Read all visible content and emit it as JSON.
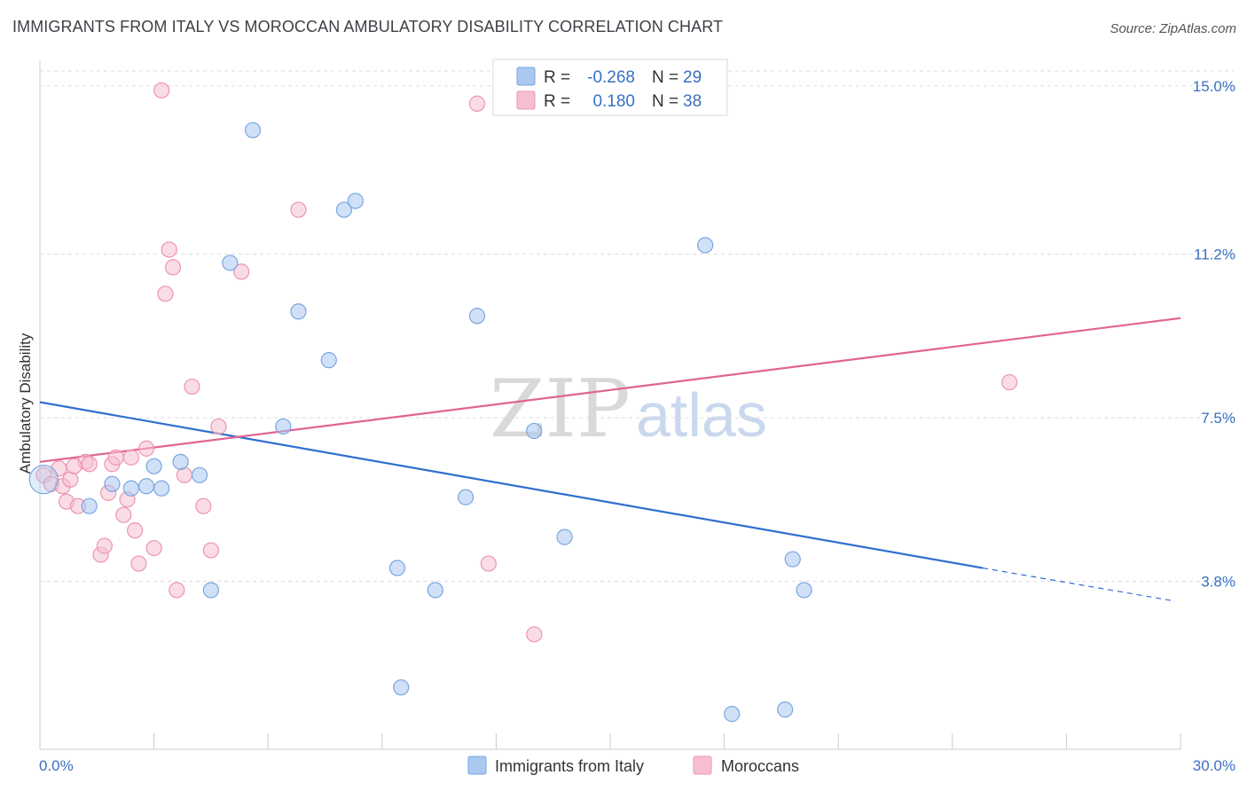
{
  "header": {
    "title": "IMMIGRANTS FROM ITALY VS MOROCCAN AMBULATORY DISABILITY CORRELATION CHART",
    "source": "Source: ZipAtlas.com"
  },
  "watermark": {
    "zip": "ZIP",
    "atlas": "atlas"
  },
  "colors": {
    "blue_fill": "#aac8f0",
    "blue_stroke": "#7aa6e0",
    "blue_line": "#2f6fd0",
    "pink_fill": "#f6bfd0",
    "pink_stroke": "#ec94b2",
    "pink_line": "#e06592",
    "grid": "#dddddd",
    "tick_text": "#3a6fc4"
  },
  "legend": {
    "rows": [
      {
        "r_label": "R =",
        "r_value": "-0.268",
        "n_label": "N =",
        "n_value": "29"
      },
      {
        "r_label": "R =",
        "r_value": "0.180",
        "n_label": "N =",
        "n_value": "38"
      }
    ]
  },
  "bottom_legend": {
    "items": [
      {
        "label": "Immigrants from Italy"
      },
      {
        "label": "Moroccans"
      }
    ]
  },
  "chart_data": {
    "type": "scatter",
    "title": "IMMIGRANTS FROM ITALY VS MOROCCAN AMBULATORY DISABILITY CORRELATION CHART",
    "xlabel": "",
    "ylabel": "Ambulatory Disability",
    "xlim": [
      0,
      30
    ],
    "ylim": [
      0,
      15.5
    ],
    "x_tick_labels": [
      "0.0%",
      "30.0%"
    ],
    "y_ticks": [
      3.8,
      7.5,
      11.2,
      15.0
    ],
    "y_tick_labels": [
      "3.8%",
      "7.5%",
      "11.2%",
      "15.0%"
    ],
    "grid": true,
    "series": [
      {
        "name": "Immigrants from Italy",
        "r": -0.268,
        "n": 29,
        "points": [
          [
            0.1,
            6.1
          ],
          [
            1.3,
            5.5
          ],
          [
            1.9,
            6.0
          ],
          [
            2.4,
            5.9
          ],
          [
            2.8,
            5.95
          ],
          [
            3.0,
            6.4
          ],
          [
            3.2,
            5.9
          ],
          [
            3.7,
            6.5
          ],
          [
            4.2,
            6.2
          ],
          [
            4.5,
            3.6
          ],
          [
            5.0,
            11.0
          ],
          [
            5.6,
            14.0
          ],
          [
            6.4,
            7.3
          ],
          [
            6.8,
            9.9
          ],
          [
            7.6,
            8.8
          ],
          [
            8.0,
            12.2
          ],
          [
            8.3,
            12.4
          ],
          [
            9.4,
            4.1
          ],
          [
            10.4,
            3.6
          ],
          [
            11.2,
            5.7
          ],
          [
            11.5,
            9.8
          ],
          [
            13.0,
            7.2
          ],
          [
            13.8,
            4.8
          ],
          [
            17.5,
            11.4
          ],
          [
            18.2,
            0.8
          ],
          [
            19.6,
            0.9
          ],
          [
            19.8,
            4.3
          ],
          [
            20.1,
            3.6
          ],
          [
            9.5,
            1.4
          ]
        ],
        "trend": {
          "x0": 0.0,
          "y0": 7.85,
          "x1": 24.8,
          "y1": 4.1,
          "dashed_to_x": 30.0,
          "dashed_to_y": 3.35
        }
      },
      {
        "name": "Moroccans",
        "r": 0.18,
        "n": 38,
        "points": [
          [
            0.1,
            6.2
          ],
          [
            0.3,
            6.0
          ],
          [
            0.5,
            6.35
          ],
          [
            0.6,
            5.95
          ],
          [
            0.7,
            5.6
          ],
          [
            0.8,
            6.1
          ],
          [
            1.0,
            5.5
          ],
          [
            1.2,
            6.5
          ],
          [
            1.3,
            6.45
          ],
          [
            1.6,
            4.4
          ],
          [
            1.7,
            4.6
          ],
          [
            1.8,
            5.8
          ],
          [
            1.9,
            6.45
          ],
          [
            2.0,
            6.6
          ],
          [
            2.2,
            5.3
          ],
          [
            2.3,
            5.65
          ],
          [
            2.4,
            6.6
          ],
          [
            2.5,
            4.95
          ],
          [
            2.6,
            4.2
          ],
          [
            2.8,
            6.8
          ],
          [
            3.0,
            4.55
          ],
          [
            3.2,
            14.9
          ],
          [
            3.3,
            10.3
          ],
          [
            3.4,
            11.3
          ],
          [
            3.5,
            10.9
          ],
          [
            3.6,
            3.6
          ],
          [
            3.8,
            6.2
          ],
          [
            4.0,
            8.2
          ],
          [
            4.3,
            5.5
          ],
          [
            4.5,
            4.5
          ],
          [
            4.7,
            7.3
          ],
          [
            5.3,
            10.8
          ],
          [
            6.8,
            12.2
          ],
          [
            11.5,
            14.6
          ],
          [
            11.8,
            4.2
          ],
          [
            13.0,
            2.6
          ],
          [
            25.5,
            8.3
          ],
          [
            0.9,
            6.4
          ]
        ],
        "trend": {
          "x0": 0.0,
          "y0": 6.5,
          "x1": 30.0,
          "y1": 9.75
        }
      }
    ]
  }
}
